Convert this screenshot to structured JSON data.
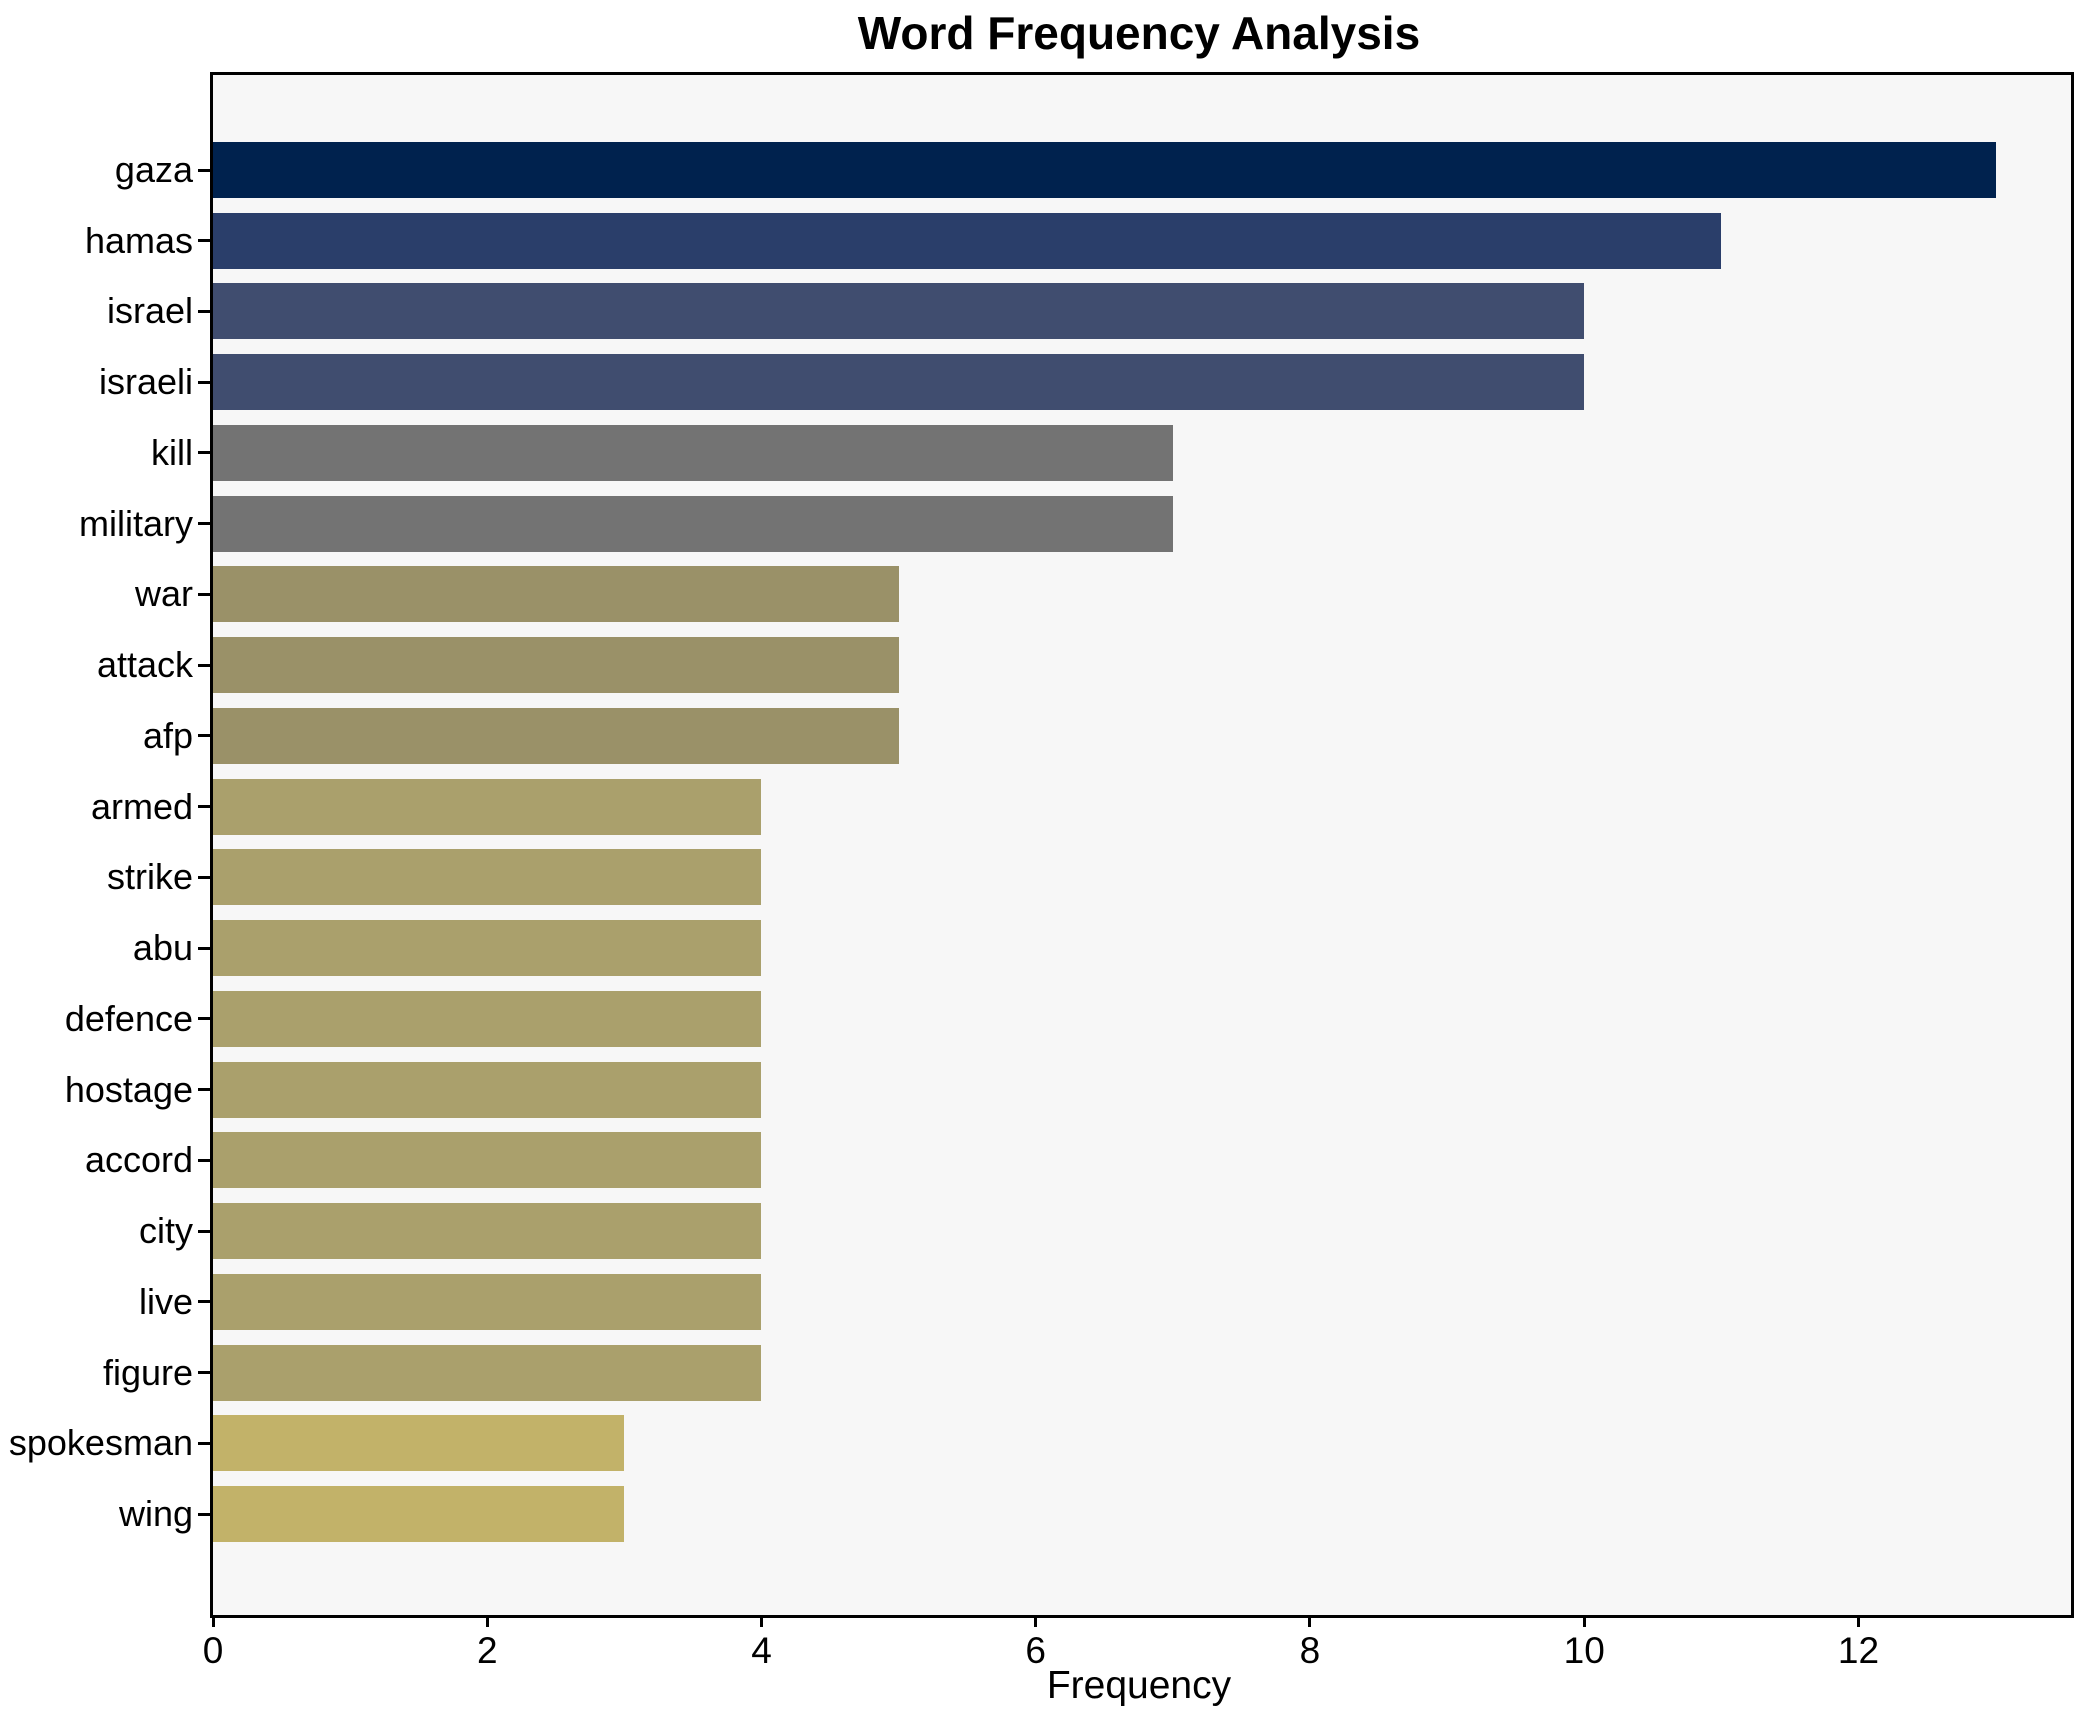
{
  "chart_data": {
    "type": "bar",
    "orientation": "horizontal",
    "title": "Word Frequency Analysis",
    "xlabel": "Frequency",
    "ylabel": "",
    "categories": [
      "gaza",
      "hamas",
      "israel",
      "israeli",
      "kill",
      "military",
      "war",
      "attack",
      "afp",
      "armed",
      "strike",
      "abu",
      "defence",
      "hostage",
      "accord",
      "city",
      "live",
      "figure",
      "spokesman",
      "wing"
    ],
    "values": [
      13,
      11,
      10,
      10,
      7,
      7,
      5,
      5,
      5,
      4,
      4,
      4,
      4,
      4,
      4,
      4,
      4,
      4,
      3,
      3
    ],
    "bar_colors": [
      "#00224e",
      "#2a3e6a",
      "#404d6f",
      "#404d6f",
      "#737373",
      "#737373",
      "#9a9168",
      "#9a9168",
      "#9a9168",
      "#aaa06c",
      "#aaa06c",
      "#aaa06c",
      "#aaa06c",
      "#aaa06c",
      "#aaa06c",
      "#aaa06c",
      "#aaa06c",
      "#aaa06c",
      "#c2b269",
      "#c2b269"
    ],
    "xticks": [
      0,
      2,
      4,
      6,
      8,
      10,
      12
    ],
    "xlim": [
      0,
      13.55
    ],
    "grid": false,
    "legend_position": "none",
    "plot_bg": "#f7f7f7",
    "figure_bg": "#ffffff",
    "spine_color": "#000000"
  }
}
